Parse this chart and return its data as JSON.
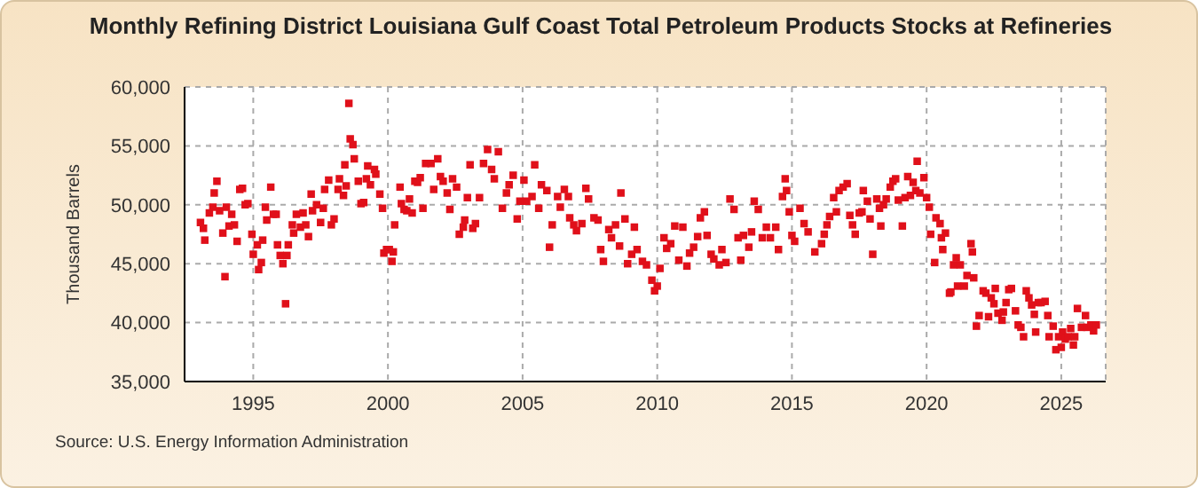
{
  "chart_data": {
    "type": "scatter",
    "title": "Monthly Refining District Louisiana Gulf Coast Total Petroleum Products Stocks at Refineries",
    "ylabel": "Thousand Barrels",
    "annotations": [
      "Source: U.S. Energy Information Administration"
    ],
    "x": [
      1993.04,
      1993.15,
      1993.2,
      1993.37,
      1993.5,
      1993.55,
      1993.65,
      1993.75,
      1993.87,
      1993.95,
      1994.0,
      1994.1,
      1994.2,
      1994.3,
      1994.4,
      1994.5,
      1994.6,
      1994.7,
      1994.8,
      1994.95,
      1995.0,
      1995.15,
      1995.2,
      1995.3,
      1995.35,
      1995.45,
      1995.5,
      1995.65,
      1995.75,
      1995.85,
      1995.9,
      1996.0,
      1996.1,
      1996.2,
      1996.25,
      1996.3,
      1996.45,
      1996.5,
      1996.6,
      1996.75,
      1996.85,
      1996.95,
      1997.05,
      1997.15,
      1997.2,
      1997.35,
      1997.5,
      1997.6,
      1997.65,
      1997.8,
      1997.9,
      1998.0,
      1998.15,
      1998.2,
      1998.35,
      1998.4,
      1998.45,
      1998.55,
      1998.6,
      1998.7,
      1998.75,
      1998.9,
      1999.0,
      1999.1,
      1999.2,
      1999.25,
      1999.35,
      1999.5,
      1999.55,
      1999.7,
      1999.8,
      1999.85,
      1999.95,
      2000.05,
      2000.15,
      2000.2,
      2000.25,
      2000.45,
      2000.5,
      2000.6,
      2000.7,
      2000.8,
      2000.9,
      2001.0,
      2001.1,
      2001.2,
      2001.3,
      2001.4,
      2001.6,
      2001.7,
      2001.85,
      2001.95,
      2002.05,
      2002.2,
      2002.3,
      2002.4,
      2002.55,
      2002.65,
      2002.8,
      2002.85,
      2002.95,
      2003.05,
      2003.15,
      2003.25,
      2003.4,
      2003.55,
      2003.7,
      2003.85,
      2003.95,
      2004.1,
      2004.25,
      2004.4,
      2004.5,
      2004.65,
      2004.8,
      2004.9,
      2005.05,
      2005.15,
      2005.35,
      2005.45,
      2005.6,
      2005.7,
      2005.9,
      2006.0,
      2006.1,
      2006.3,
      2006.4,
      2006.55,
      2006.7,
      2006.75,
      2006.9,
      2007.0,
      2007.2,
      2007.35,
      2007.45,
      2007.65,
      2007.8,
      2007.9,
      2008.0,
      2008.2,
      2008.3,
      2008.45,
      2008.6,
      2008.65,
      2008.8,
      2008.9,
      2009.05,
      2009.15,
      2009.25,
      2009.45,
      2009.6,
      2009.8,
      2009.9,
      2010.0,
      2010.1,
      2010.25,
      2010.35,
      2010.5,
      2010.65,
      2010.8,
      2010.95,
      2011.1,
      2011.2,
      2011.35,
      2011.5,
      2011.6,
      2011.75,
      2011.85,
      2012.0,
      2012.1,
      2012.3,
      2012.4,
      2012.55,
      2012.7,
      2012.85,
      2013.0,
      2013.1,
      2013.2,
      2013.4,
      2013.5,
      2013.6,
      2013.75,
      2013.9,
      2014.05,
      2014.2,
      2014.4,
      2014.5,
      2014.65,
      2014.75,
      2014.8,
      2014.9,
      2015.0,
      2015.1,
      2015.3,
      2015.45,
      2015.6,
      2015.85,
      2016.1,
      2016.2,
      2016.3,
      2016.4,
      2016.55,
      2016.65,
      2016.75,
      2016.9,
      2017.05,
      2017.15,
      2017.25,
      2017.35,
      2017.5,
      2017.6,
      2017.65,
      2017.8,
      2017.9,
      2018.0,
      2018.15,
      2018.25,
      2018.3,
      2018.4,
      2018.5,
      2018.65,
      2018.75,
      2018.85,
      2018.95,
      2019.1,
      2019.2,
      2019.3,
      2019.4,
      2019.5,
      2019.6,
      2019.65,
      2019.75,
      2019.9,
      2020.0,
      2020.1,
      2020.15,
      2020.3,
      2020.35,
      2020.5,
      2020.55,
      2020.6,
      2020.7,
      2020.85,
      2020.9,
      2021.0,
      2021.1,
      2021.15,
      2021.25,
      2021.4,
      2021.5,
      2021.65,
      2021.7,
      2021.75,
      2021.85,
      2021.95,
      2022.1,
      2022.2,
      2022.3,
      2022.4,
      2022.5,
      2022.55,
      2022.65,
      2022.8,
      2022.85,
      2022.95,
      2023.05,
      2023.15,
      2023.3,
      2023.4,
      2023.5,
      2023.6,
      2023.7,
      2023.8,
      2023.9,
      2024.0,
      2024.05,
      2024.15,
      2024.25,
      2024.4,
      2024.5,
      2024.55,
      2024.7,
      2024.8,
      2024.9,
      2025.0,
      2025.05,
      2025.15,
      2025.25,
      2025.35,
      2025.45,
      2025.5,
      2025.6,
      2025.75,
      2025.9,
      2025.95,
      2026.1,
      2026.2,
      2026.3
    ],
    "series": [
      {
        "color": "#e0101a",
        "values": [
          48500,
          48000,
          47000,
          49300,
          49800,
          51000,
          52000,
          49500,
          47600,
          43900,
          49800,
          48200,
          49200,
          48300,
          46900,
          51300,
          51400,
          50000,
          50100,
          47500,
          45800,
          46600,
          44500,
          45100,
          47000,
          49800,
          48700,
          51500,
          49200,
          49200,
          46600,
          45700,
          45000,
          41600,
          45700,
          46600,
          48300,
          47600,
          49200,
          48100,
          49300,
          48300,
          47300,
          50900,
          49500,
          50000,
          48500,
          49700,
          51300,
          52100,
          48300,
          48800,
          51300,
          52200,
          50800,
          53400,
          51600,
          58600,
          55600,
          55100,
          53900,
          52000,
          50100,
          50200,
          52200,
          53300,
          51700,
          53000,
          52600,
          50900,
          49700,
          45900,
          46200,
          46200,
          45200,
          46000,
          48300,
          51500,
          50100,
          49600,
          49500,
          50500,
          49300,
          52000,
          51900,
          52300,
          49700,
          53500,
          53500,
          51300,
          53900,
          52400,
          52000,
          51000,
          49600,
          52200,
          51500,
          47500,
          48100,
          48700,
          50600,
          53400,
          48000,
          48400,
          50600,
          53500,
          54700,
          53000,
          52200,
          54500,
          49700,
          51000,
          51700,
          52500,
          48800,
          50300,
          52100,
          50300,
          50700,
          53400,
          49700,
          51700,
          51200,
          46400,
          48300,
          50700,
          49800,
          51300,
          50700,
          48900,
          48300,
          47800,
          48400,
          51400,
          50500,
          48900,
          48700,
          46200,
          45200,
          47900,
          47200,
          48300,
          46500,
          51000,
          48800,
          45000,
          45800,
          48100,
          46200,
          45200,
          44900,
          43600,
          42700,
          43100,
          44600,
          47200,
          46300,
          46700,
          48200,
          45300,
          48100,
          44800,
          45900,
          46400,
          47300,
          48900,
          49400,
          47400,
          45800,
          45400,
          44900,
          46200,
          45100,
          50500,
          49600,
          47200,
          45300,
          47400,
          46400,
          47700,
          50300,
          49600,
          47200,
          48100,
          47200,
          48100,
          46200,
          50700,
          52200,
          51200,
          49400,
          47400,
          46900,
          49700,
          48400,
          47700,
          46000,
          46700,
          47500,
          48300,
          49000,
          50600,
          49400,
          51200,
          51500,
          51800,
          49100,
          48300,
          47500,
          49300,
          49400,
          51200,
          50300,
          48800,
          45800,
          50500,
          49700,
          48200,
          50000,
          50500,
          51500,
          52000,
          52200,
          50400,
          48200,
          50600,
          52400,
          50800,
          51900,
          51200,
          53700,
          51000,
          52300,
          50600,
          49800,
          47500,
          45100,
          48900,
          48400,
          47200,
          46200,
          47600,
          42500,
          42600,
          44900,
          45500,
          43100,
          44900,
          43100,
          44000,
          46700,
          46000,
          43800,
          39700,
          40600,
          42700,
          42500,
          40500,
          42100,
          41600,
          42900,
          40800,
          40200,
          40900,
          41700,
          42800,
          42900,
          41000,
          39800,
          39600,
          38800,
          42700,
          42100,
          41500,
          40700,
          39200,
          41700,
          41700,
          41800,
          40600,
          38800,
          39700,
          37700,
          38800,
          37900,
          39200,
          38600,
          38800,
          39500,
          38100,
          38800,
          41200,
          39600,
          40600,
          39600,
          39800,
          39300,
          39800
        ]
      }
    ],
    "xlim": [
      1992.45,
      2026.65
    ],
    "xticks": [
      1995,
      2000,
      2005,
      2010,
      2015,
      2020,
      2025
    ],
    "ylim": [
      35000,
      60000
    ],
    "yticks": [
      {
        "value": 35000,
        "label": "35,000"
      },
      {
        "value": 40000,
        "label": "40,000"
      },
      {
        "value": 45000,
        "label": "45,000"
      },
      {
        "value": 50000,
        "label": "50,000"
      },
      {
        "value": 55000,
        "label": "55,000"
      },
      {
        "value": 60000,
        "label": "60,000"
      }
    ],
    "grid": true,
    "marker": "square"
  }
}
